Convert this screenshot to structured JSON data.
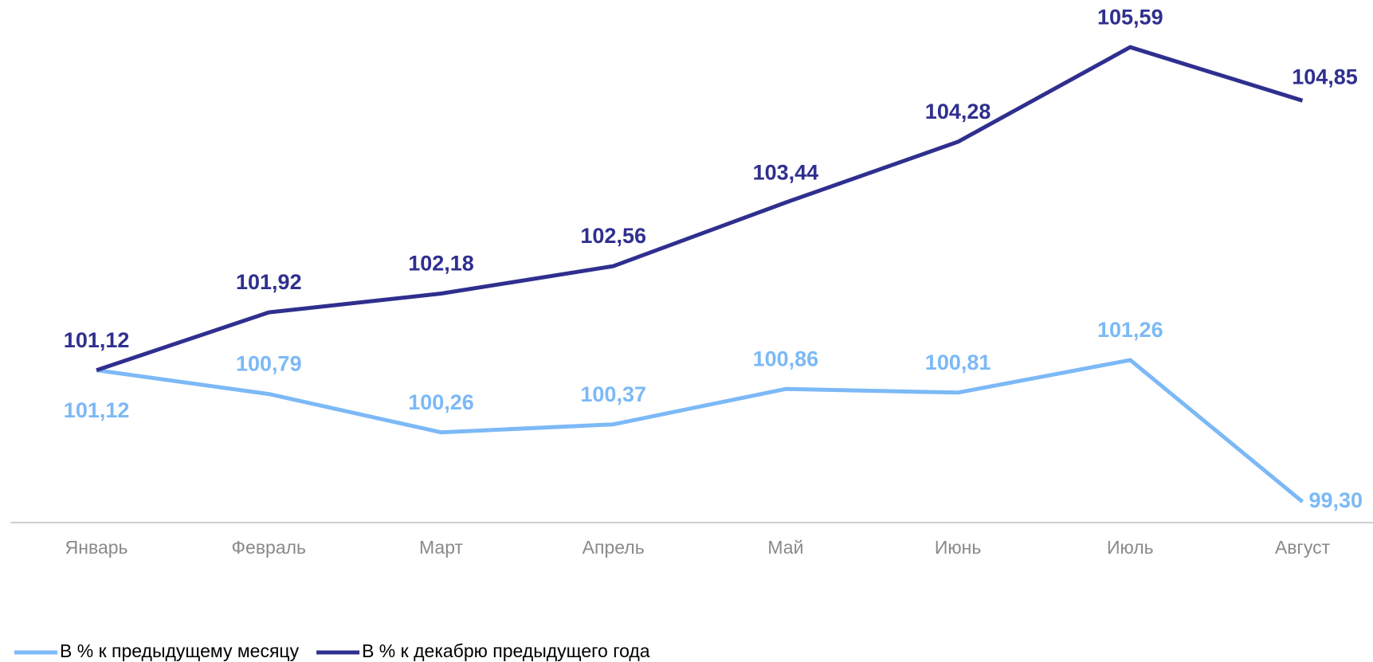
{
  "chart_data": {
    "type": "line",
    "categories": [
      "Январь",
      "Февраль",
      "Март",
      "Апрель",
      "Май",
      "Июнь",
      "Июль",
      "Август"
    ],
    "series": [
      {
        "name": "В % к предыдущему месяцу",
        "color": "#7cb9f6",
        "values": [
          101.12,
          100.79,
          100.26,
          100.37,
          100.86,
          100.81,
          101.26,
          99.3
        ],
        "value_labels": [
          "101,12",
          "100,79",
          "100,26",
          "100,37",
          "100,86",
          "100,81",
          "101,26",
          "99,30"
        ]
      },
      {
        "name": "В % к декабрю предыдущего года",
        "color": "#2f2f8f",
        "values": [
          101.12,
          101.92,
          102.18,
          102.56,
          103.44,
          104.28,
          105.59,
          104.85
        ],
        "value_labels": [
          "101,12",
          "101,92",
          "102,18",
          "102,56",
          "103,44",
          "104,28",
          "105,59",
          "104,85"
        ]
      }
    ],
    "ylim": [
      99,
      106
    ],
    "legend": "bottom"
  }
}
